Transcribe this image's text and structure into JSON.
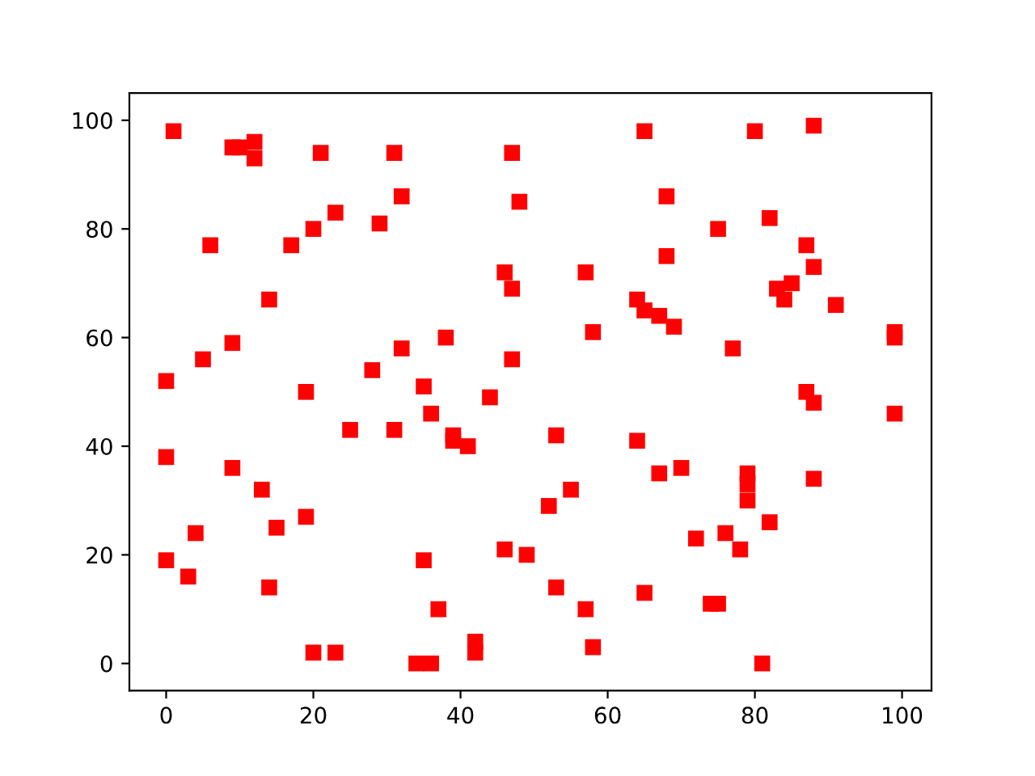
{
  "chart_data": {
    "type": "scatter",
    "marker": "square",
    "grid": false,
    "legend": false,
    "xlim": [
      -5,
      104
    ],
    "ylim": [
      -5,
      105
    ],
    "xticks": [
      0,
      20,
      40,
      60,
      80,
      100
    ],
    "yticks": [
      0,
      20,
      40,
      60,
      80,
      100
    ],
    "series": [
      {
        "color": "#ff0000",
        "x": [
          1,
          9,
          10,
          12,
          12,
          21,
          31,
          47,
          65,
          80,
          88,
          6,
          17,
          20,
          23,
          29,
          32,
          48,
          68,
          75,
          82,
          87,
          88,
          14,
          9,
          5,
          0,
          19,
          28,
          32,
          25,
          31,
          35,
          36,
          38,
          39,
          39,
          41,
          44,
          46,
          47,
          47,
          57,
          58,
          64,
          65,
          67,
          69,
          68,
          77,
          83,
          84,
          85,
          91,
          99,
          99,
          99,
          87,
          88,
          64,
          0,
          9,
          13,
          15,
          19,
          4,
          0,
          3,
          14,
          20,
          23,
          34,
          36,
          35,
          37,
          42,
          42,
          46,
          49,
          52,
          53,
          55,
          53,
          57,
          58,
          65,
          67,
          70,
          72,
          74,
          75,
          76,
          78,
          79,
          79,
          79,
          81,
          82,
          88
        ],
        "values": [
          98,
          95,
          95,
          96,
          93,
          94,
          94,
          94,
          98,
          98,
          99,
          77,
          77,
          80,
          83,
          81,
          86,
          85,
          86,
          80,
          82,
          77,
          73,
          67,
          59,
          56,
          52,
          50,
          54,
          58,
          43,
          43,
          51,
          46,
          60,
          42,
          41,
          40,
          49,
          72,
          69,
          56,
          72,
          61,
          67,
          65,
          64,
          62,
          75,
          58,
          69,
          67,
          70,
          66,
          61,
          60,
          46,
          50,
          48,
          41,
          38,
          36,
          32,
          25,
          27,
          24,
          19,
          16,
          14,
          2,
          2,
          0,
          0,
          19,
          10,
          4,
          2,
          21,
          20,
          29,
          42,
          32,
          14,
          10,
          3,
          13,
          35,
          36,
          23,
          11,
          11,
          24,
          21,
          35,
          33,
          30,
          0,
          26,
          34
        ]
      }
    ]
  }
}
